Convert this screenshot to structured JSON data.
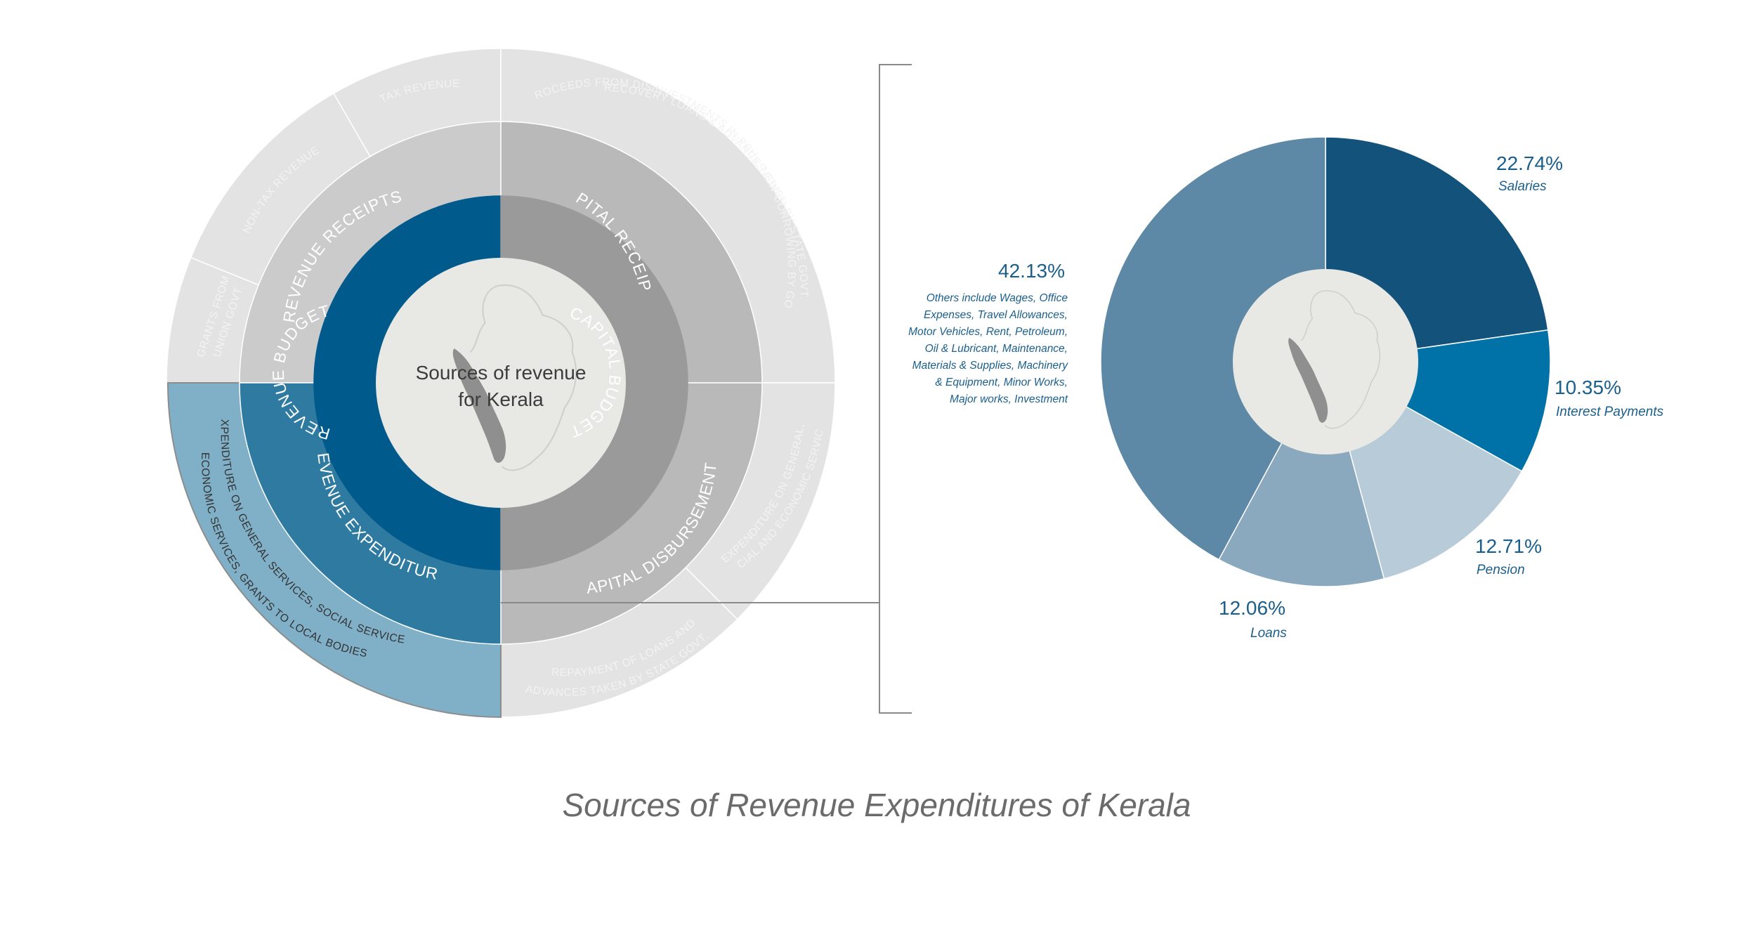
{
  "caption": "Sources of Revenue Expenditures of Kerala",
  "sunburst": {
    "center_title_line1": "Sources of revenue",
    "center_title_line2": "for Kerala",
    "inner": [
      {
        "label": "REVENUE  BUDGET",
        "color": "#005b8c"
      },
      {
        "label": "CAPITAL  BUDGET",
        "color": "#9a9a9a"
      }
    ],
    "middle": [
      {
        "label": "REVENUE RECEIPTS",
        "color": "#cbcbcb"
      },
      {
        "label": "CAPITAL RECEIPTS",
        "color": "#b9b9b9"
      },
      {
        "label": "CAPITAL  DISBURSEMENTS",
        "color": "#b9b9b9"
      },
      {
        "label": "REVENUE  EXPENDITURES",
        "color": "#2f7aa1"
      }
    ],
    "outer": {
      "grants": {
        "line1": "GRANTS FROM",
        "line2": "UNION GOVT."
      },
      "non_tax": "NON-TAX REVENUE",
      "tax": "TAX REVENUE",
      "capital_receipts": {
        "line1": "RECOVERY LOANS & ADVANCES GIVEN BY STATE GOVT.",
        "line2": "PROCEEDS FROM DISINVESTMENTS IN PSUs, NEW BORROWING BY GOVT"
      },
      "general_social": {
        "line1": "EXPENDITURE ON GENERAL,",
        "line2": "SOCIAL AND ECONOMIC SERVICES"
      },
      "repayment": {
        "line1": "REPAYMENT OF LOANS AND",
        "line2": "ADVANCES TAKEN BY STATE GOVT."
      },
      "revenue_exp": {
        "line1": "EXPENDITURE ON GENERAL SERVICES, SOCIAL SERVICES,",
        "line2": "ECONOMIC SERVICES, GRANTS TO LOCAL BODIES"
      }
    },
    "colors": {
      "outer_grey": "#e3e3e3",
      "outer_highlight": "#80b0c7",
      "center": "#e8e8e4",
      "map": "#8f8f8f"
    }
  },
  "chart_data": {
    "type": "pie",
    "title": "",
    "slices": [
      {
        "label": "Salaries",
        "value": 22.74,
        "pct_label": "22.74%",
        "color": "#13527a"
      },
      {
        "label": "Interest Payments",
        "value": 10.35,
        "pct_label": "10.35%",
        "color": "#0072a8"
      },
      {
        "label": "Pension",
        "value": 12.71,
        "pct_label": "12.71%",
        "color": "#b7cbd8"
      },
      {
        "label": "Loans",
        "value": 12.06,
        "pct_label": "12.06%",
        "color": "#8aa9be"
      },
      {
        "label": "Others",
        "value": 42.13,
        "pct_label": "42.13%",
        "color": "#5d88a6"
      }
    ],
    "others_note": [
      "Others include Wages, Office",
      "Expenses, Travel Allowances,",
      "Motor Vehicles, Rent, Petroleum,",
      "Oil & Lubricant, Maintenance,",
      "Materials & Supplies, Machinery",
      "& Equipment, Minor Works,",
      "Major works, Investment"
    ]
  }
}
